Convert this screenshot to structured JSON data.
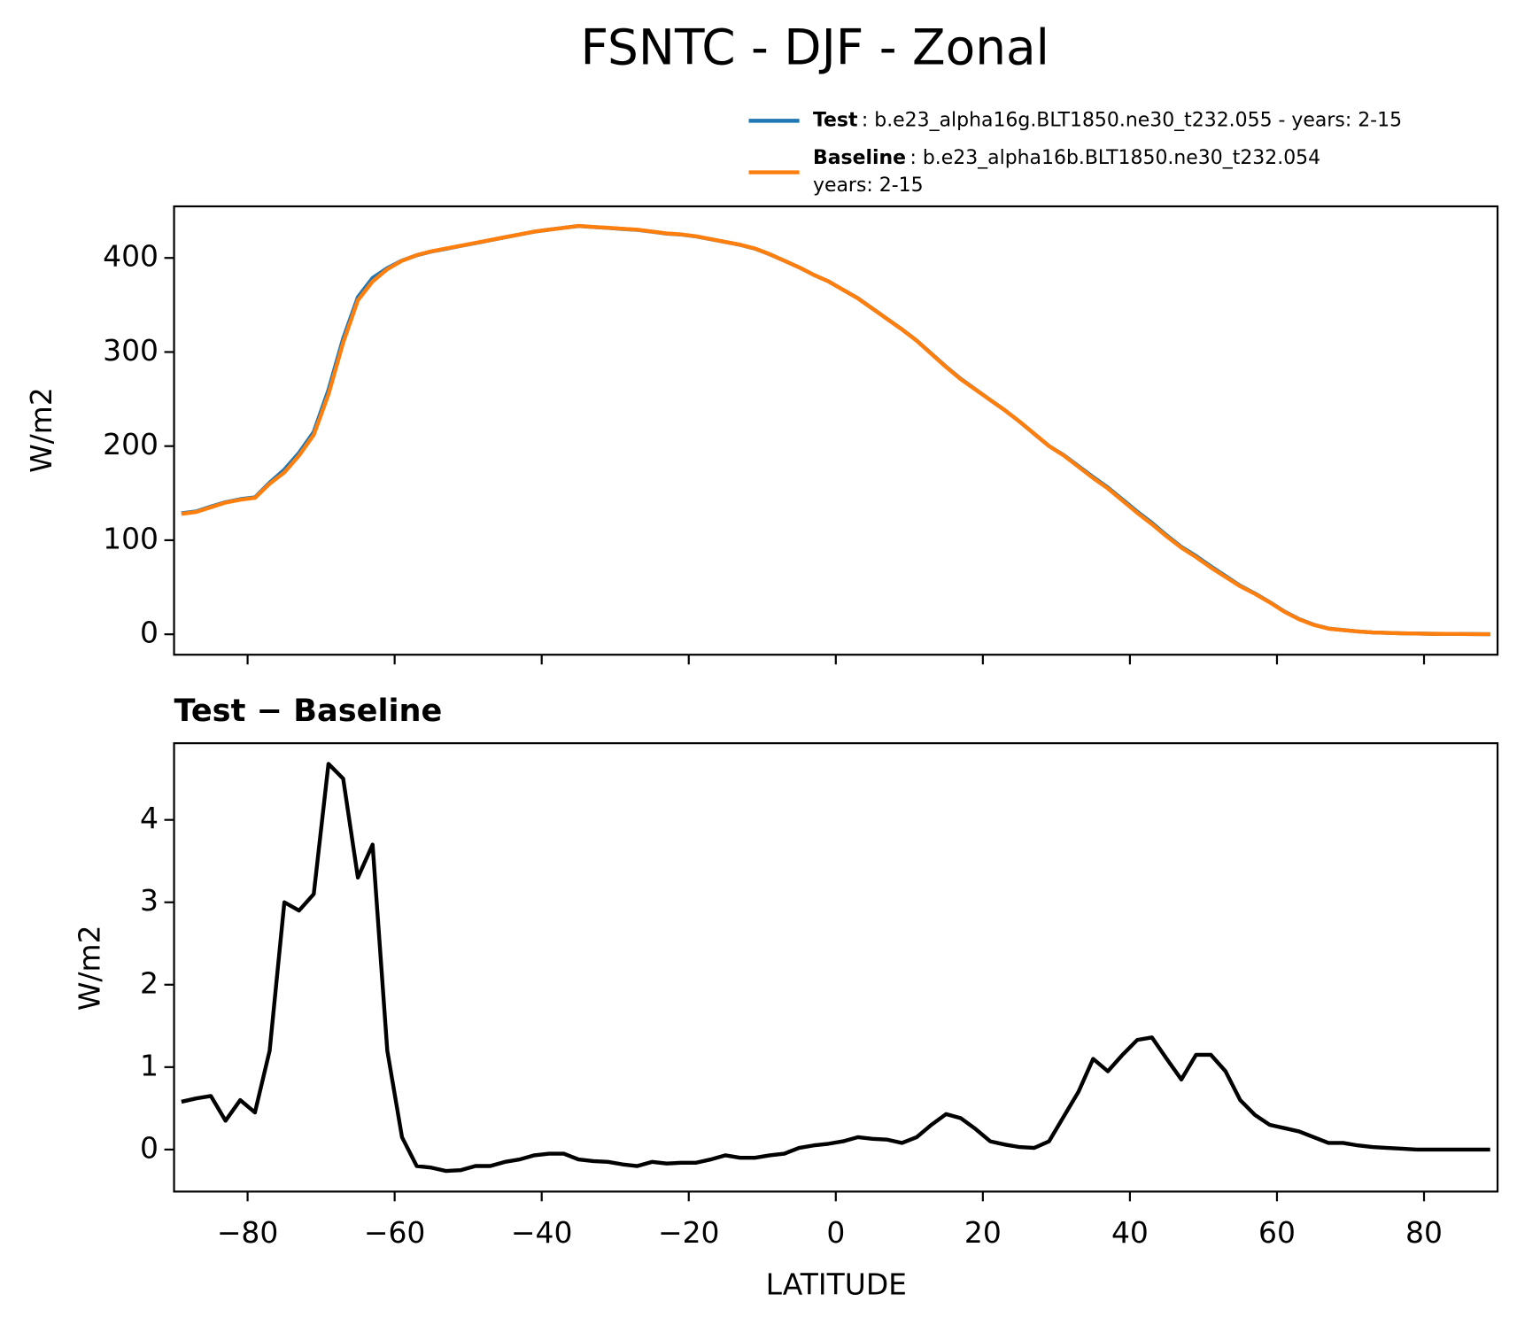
{
  "chart_data": [
    {
      "type": "line",
      "title": "FSNTC - DJF - Zonal",
      "ylabel": "W/m2",
      "x": [
        -89,
        -87,
        -85,
        -83,
        -81,
        -79,
        -77,
        -75,
        -73,
        -71,
        -69,
        -67,
        -65,
        -63,
        -61,
        -59,
        -57,
        -55,
        -53,
        -51,
        -49,
        -47,
        -45,
        -43,
        -41,
        -39,
        -37,
        -35,
        -33,
        -31,
        -29,
        -27,
        -25,
        -23,
        -21,
        -19,
        -17,
        -15,
        -13,
        -11,
        -9,
        -7,
        -5,
        -3,
        -1,
        1,
        3,
        5,
        7,
        9,
        11,
        13,
        15,
        17,
        19,
        21,
        23,
        25,
        27,
        29,
        31,
        33,
        35,
        37,
        39,
        41,
        43,
        45,
        47,
        49,
        51,
        53,
        55,
        57,
        59,
        61,
        63,
        65,
        67,
        69,
        71,
        73,
        75,
        77,
        79,
        81,
        83,
        85,
        87,
        89
      ],
      "series": [
        {
          "name": "Test",
          "description": ": b.e23_alpha16g.BLT1850.ne30_t232.055 - years: 2-15",
          "color": "#1f77b4",
          "values": [
            128.6,
            130.6,
            135.7,
            140.4,
            143.6,
            145.5,
            161.2,
            175,
            192.9,
            215.1,
            259.7,
            314.5,
            358.3,
            378.7,
            389.2,
            397.2,
            402.8,
            406.8,
            409.7,
            412.8,
            415.8,
            418.8,
            421.9,
            424.9,
            427.9,
            430,
            432,
            433.9,
            432.9,
            431.9,
            430.8,
            429.8,
            427.9,
            425.8,
            424.8,
            422.8,
            419.9,
            416.9,
            413.9,
            409.9,
            403.9,
            397,
            390,
            382,
            375.1,
            366.1,
            357.2,
            346.1,
            335.1,
            324.1,
            312.2,
            298.3,
            284.4,
            271.4,
            260.3,
            249.1,
            238.1,
            226,
            213,
            200.1,
            190.4,
            178.7,
            167.1,
            156,
            143.2,
            130.3,
            118.4,
            105.1,
            92.9,
            83.2,
            72.2,
            62,
            51.6,
            43.4,
            34.3,
            24.3,
            16.2,
            10.2,
            6.1,
            4.6,
            3,
            2,
            1.5,
            1,
            0.8,
            0.5,
            0.4,
            0.3,
            0.2,
            0.1
          ]
        },
        {
          "name": "Baseline",
          "description": ": b.e23_alpha16b.BLT1850.ne30_t232.054",
          "description_line2": "years: 2-15",
          "color": "#ff7f0e",
          "values": [
            128,
            130,
            135,
            140,
            143,
            145,
            160,
            172,
            190,
            212,
            255,
            310,
            355,
            375,
            388,
            397,
            403,
            407,
            410,
            413,
            416,
            419,
            422,
            425,
            428,
            430,
            432,
            434,
            433,
            432,
            431,
            430,
            428,
            426,
            425,
            423,
            420,
            417,
            414,
            410,
            404,
            397,
            390,
            382,
            375,
            366,
            357,
            346,
            335,
            324,
            312,
            298,
            284,
            271,
            260,
            249,
            238,
            226,
            213,
            200,
            190,
            178,
            166,
            155,
            142,
            129,
            117,
            104,
            92,
            82,
            71,
            61,
            51,
            43,
            34,
            24,
            16,
            10,
            6,
            4.5,
            3,
            2,
            1.5,
            1,
            0.8,
            0.5,
            0.4,
            0.3,
            0.2,
            0.1
          ]
        }
      ],
      "xlim": [
        -90,
        90
      ],
      "xticks": [
        -80,
        -60,
        -40,
        -20,
        0,
        20,
        40,
        60,
        80
      ],
      "ylim": [
        -21.7,
        454.8
      ],
      "yticks": [
        0,
        100,
        200,
        300,
        400
      ]
    },
    {
      "type": "line",
      "title": "Test − Baseline",
      "xlabel": "LATITUDE",
      "ylabel": "W/m2",
      "x": [
        -89,
        -87,
        -85,
        -83,
        -81,
        -79,
        -77,
        -75,
        -73,
        -71,
        -69,
        -67,
        -65,
        -63,
        -61,
        -59,
        -57,
        -55,
        -53,
        -51,
        -49,
        -47,
        -45,
        -43,
        -41,
        -39,
        -37,
        -35,
        -33,
        -31,
        -29,
        -27,
        -25,
        -23,
        -21,
        -19,
        -17,
        -15,
        -13,
        -11,
        -9,
        -7,
        -5,
        -3,
        -1,
        1,
        3,
        5,
        7,
        9,
        11,
        13,
        15,
        17,
        19,
        21,
        23,
        25,
        27,
        29,
        31,
        33,
        35,
        37,
        39,
        41,
        43,
        45,
        47,
        49,
        51,
        53,
        55,
        57,
        59,
        61,
        63,
        65,
        67,
        69,
        71,
        73,
        75,
        77,
        79,
        81,
        83,
        85,
        87,
        89
      ],
      "series": [
        {
          "color": "#000000",
          "values": [
            0.58,
            0.62,
            0.65,
            0.35,
            0.6,
            0.45,
            1.2,
            3.0,
            2.9,
            3.1,
            4.68,
            4.5,
            3.3,
            3.7,
            1.2,
            0.15,
            -0.2,
            -0.22,
            -0.26,
            -0.25,
            -0.2,
            -0.2,
            -0.15,
            -0.12,
            -0.07,
            -0.05,
            -0.05,
            -0.12,
            -0.14,
            -0.15,
            -0.18,
            -0.2,
            -0.15,
            -0.17,
            -0.16,
            -0.16,
            -0.12,
            -0.07,
            -0.1,
            -0.1,
            -0.07,
            -0.05,
            0.02,
            0.05,
            0.07,
            0.1,
            0.15,
            0.13,
            0.12,
            0.08,
            0.15,
            0.3,
            0.43,
            0.38,
            0.25,
            0.1,
            0.06,
            0.03,
            0.02,
            0.1,
            0.4,
            0.7,
            1.1,
            0.95,
            1.15,
            1.33,
            1.36,
            1.1,
            0.85,
            1.15,
            1.15,
            0.95,
            0.6,
            0.42,
            0.3,
            0.26,
            0.22,
            0.15,
            0.08,
            0.08,
            0.05,
            0.03,
            0.02,
            0.01,
            0,
            0,
            0,
            0,
            0,
            0
          ]
        }
      ],
      "xlim": [
        -90,
        90
      ],
      "xticks": [
        {
          "value": -80,
          "label": "−80"
        },
        {
          "value": -60,
          "label": "−60"
        },
        {
          "value": -40,
          "label": "−40"
        },
        {
          "value": -20,
          "label": "−20"
        },
        0,
        20,
        40,
        60,
        80
      ],
      "ylim": [
        -0.51,
        4.93
      ],
      "yticks": [
        0,
        1,
        2,
        3,
        4
      ]
    }
  ]
}
